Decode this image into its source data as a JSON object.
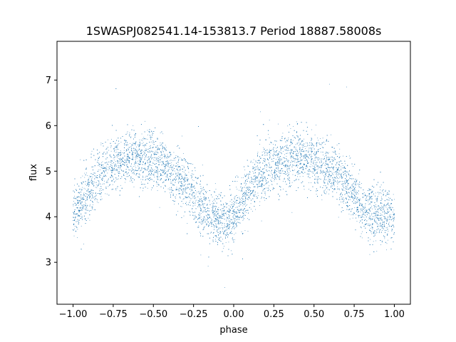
{
  "chart_data": {
    "type": "scatter",
    "title": "1SWASPJ082541.14-153813.7 Period 18887.58008s",
    "xlabel": "phase",
    "ylabel": "flux",
    "xlim": [
      -1.1,
      1.1
    ],
    "ylim": [
      2.08,
      7.85
    ],
    "xticks": [
      -1.0,
      -0.75,
      -0.5,
      -0.25,
      0.0,
      0.25,
      0.5,
      0.75,
      1.0
    ],
    "xtick_labels": [
      "−1.00",
      "−0.75",
      "−0.50",
      "−0.25",
      "0.00",
      "0.25",
      "0.50",
      "0.75",
      "1.00"
    ],
    "yticks": [
      3,
      4,
      5,
      6,
      7
    ],
    "ytick_labels": [
      "3",
      "4",
      "5",
      "6",
      "7"
    ],
    "grid": false,
    "legend": "none",
    "marker_color": "#1f77b4",
    "series": [
      {
        "x": [
          -1.0,
          -0.95,
          -0.9,
          -0.85,
          -0.8,
          -0.75,
          -0.7,
          -0.65,
          -0.6,
          -0.55,
          -0.5,
          -0.45,
          -0.4,
          -0.35,
          -0.3,
          -0.25,
          -0.2,
          -0.15,
          -0.1,
          -0.05,
          0.0,
          0.05,
          0.1,
          0.15,
          0.2,
          0.25,
          0.3,
          0.35,
          0.4,
          0.45,
          0.5,
          0.55,
          0.6,
          0.65,
          0.7,
          0.75,
          0.8,
          0.85,
          0.9,
          0.95,
          1.0
        ],
        "y": [
          4.05,
          4.3,
          4.6,
          4.85,
          5.0,
          5.15,
          5.25,
          5.3,
          5.3,
          5.3,
          5.25,
          5.15,
          5.05,
          4.9,
          4.7,
          4.45,
          4.15,
          4.0,
          3.95,
          3.95,
          4.05,
          4.3,
          4.6,
          4.85,
          5.0,
          5.15,
          5.25,
          5.3,
          5.3,
          5.3,
          5.25,
          5.15,
          5.05,
          4.9,
          4.7,
          4.45,
          4.2,
          4.05,
          4.0,
          3.95,
          4.0
        ],
        "scatter_sd": 0.3,
        "points_per_bin": 260
      }
    ]
  }
}
